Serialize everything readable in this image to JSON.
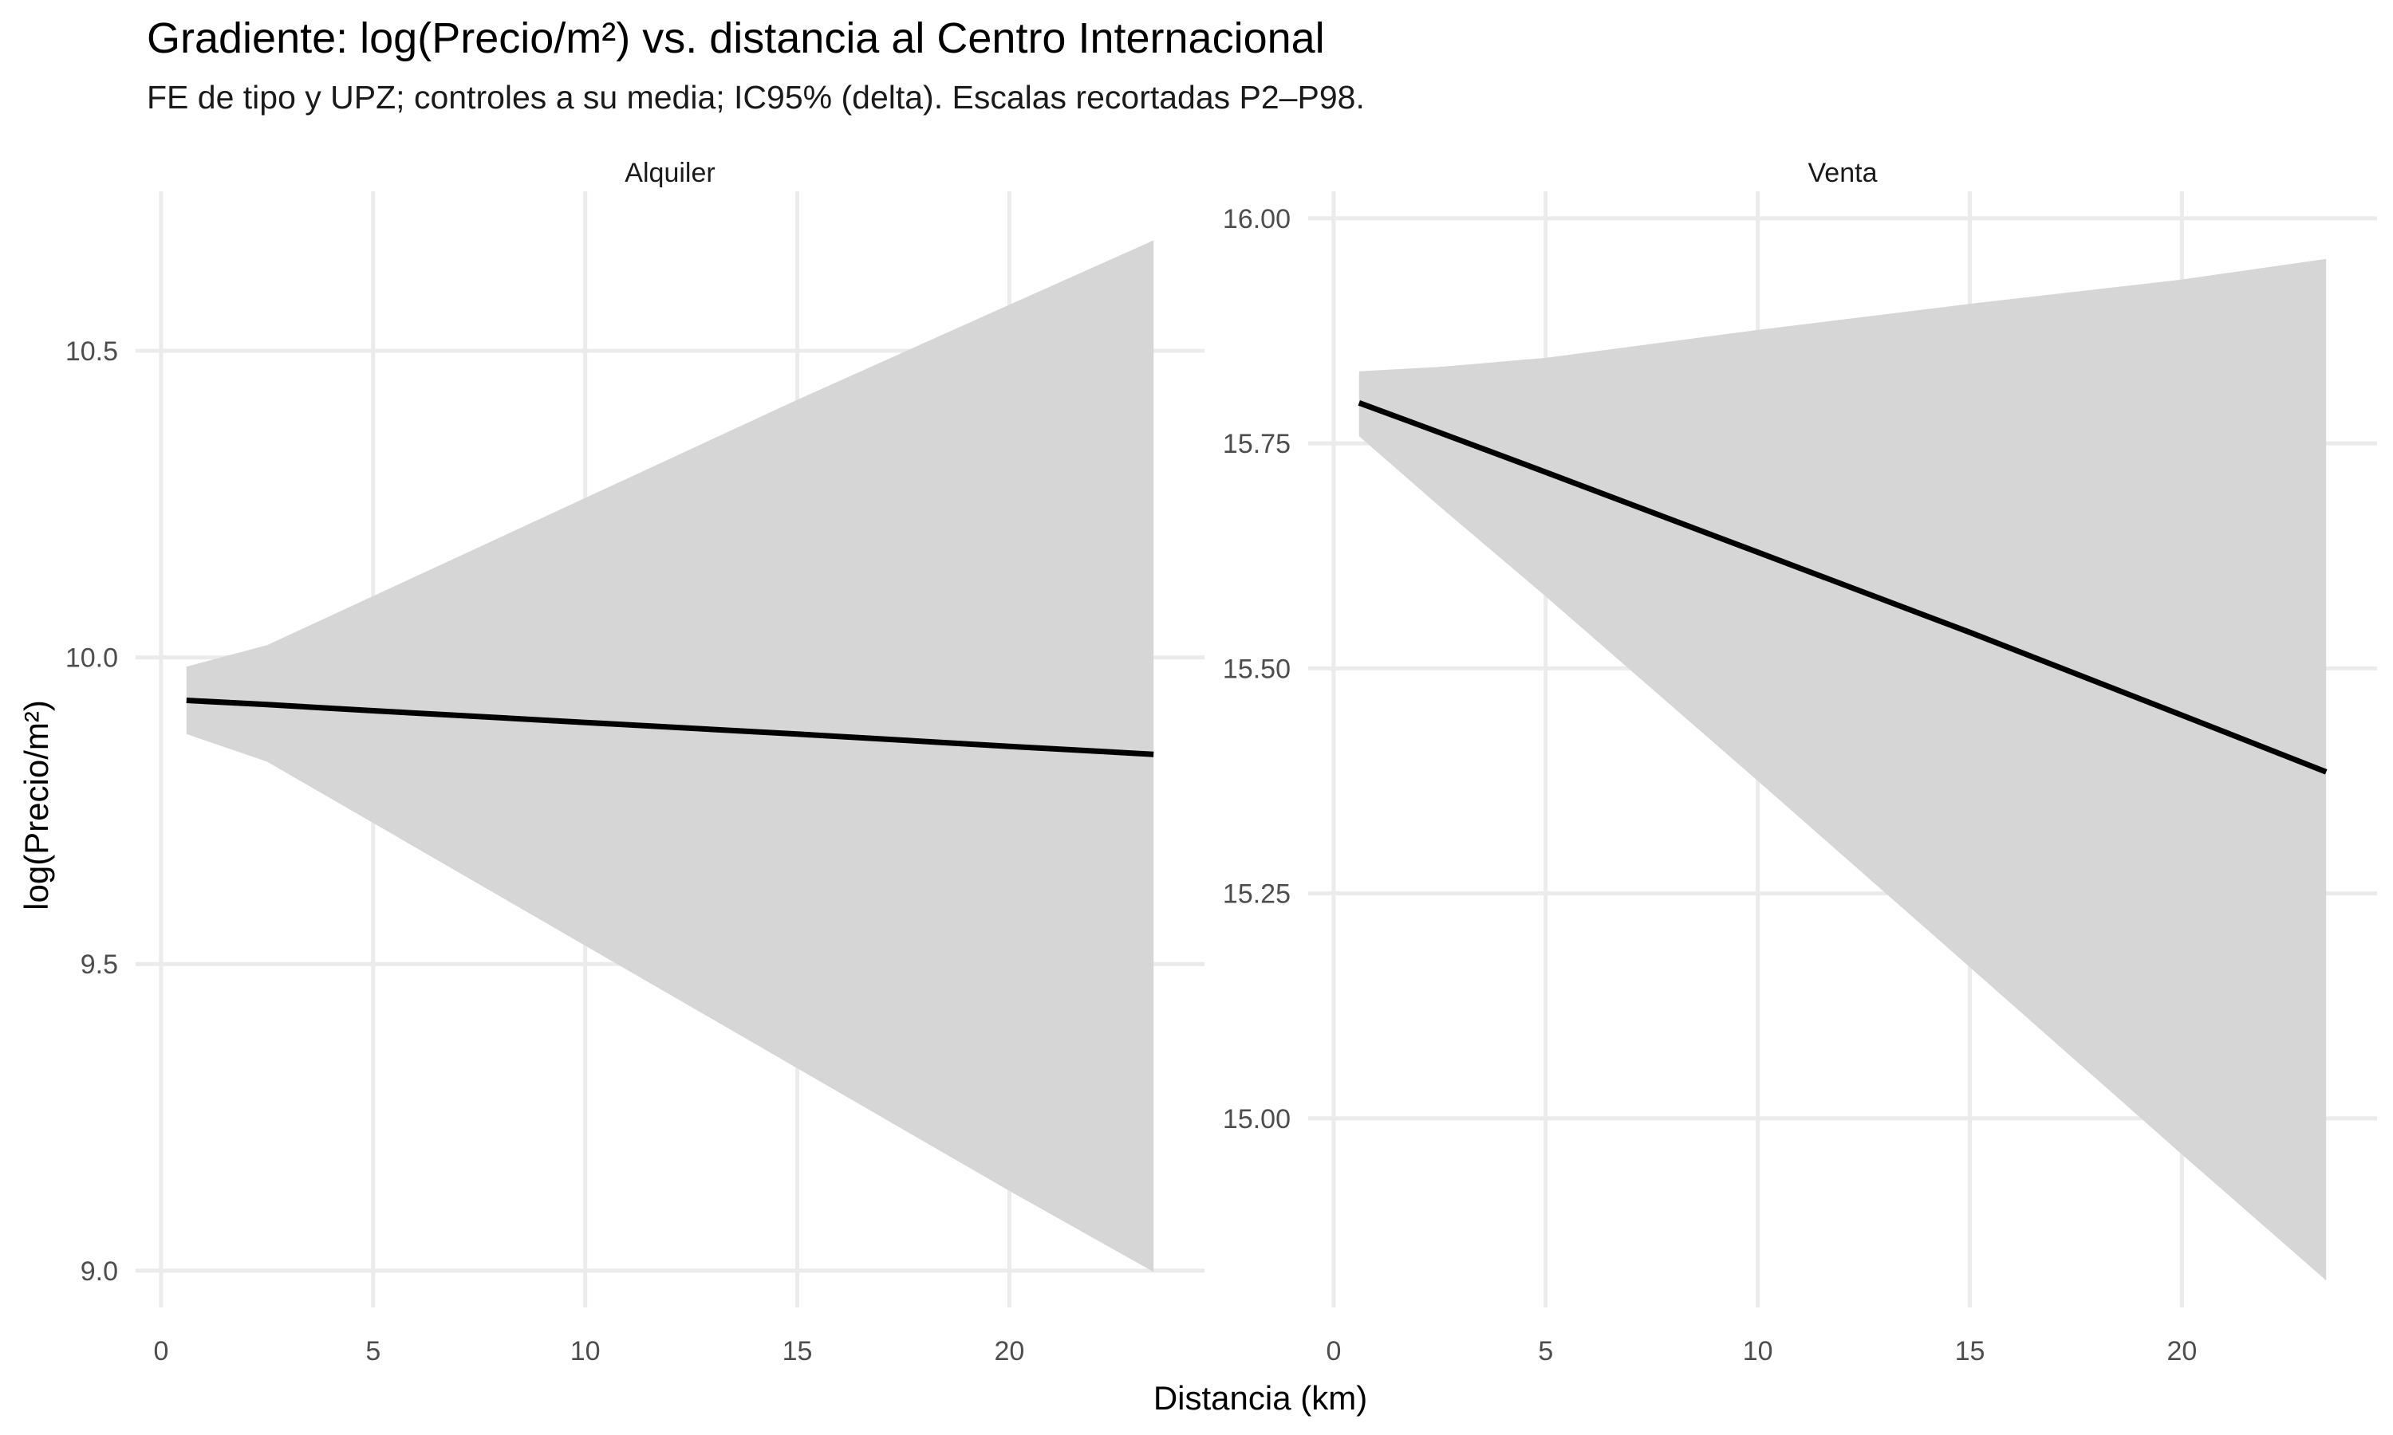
{
  "chart_data": {
    "type": "line",
    "title": "Gradiente: log(Precio/m²) vs. distancia al Centro Internacional",
    "subtitle": "FE de tipo y UPZ; controles a su media; IC95% (delta). Escalas recortadas P2–P98.",
    "xlabel": "Distancia (km)",
    "ylabel": "log(Precio/m²)",
    "grid": true,
    "legend": "none",
    "colors": {
      "line": "#000000",
      "band": "#d6d6d6",
      "grid": "#ebebeb"
    },
    "panels": [
      {
        "name": "Alquiler",
        "xlim": [
          -0.6,
          24.6
        ],
        "ylim": [
          8.94,
          10.76
        ],
        "x_ticks": [
          0,
          5,
          10,
          15,
          20
        ],
        "x_tick_labels": [
          "0",
          "5",
          "10",
          "15",
          "20"
        ],
        "y_ticks": [
          9.0,
          9.5,
          10.0,
          10.5
        ],
        "y_tick_labels": [
          "9.0",
          "9.5",
          "10.0",
          "10.5"
        ],
        "x": [
          0.6,
          2.5,
          5,
          10,
          15,
          20,
          23.4
        ],
        "fit": [
          9.93,
          9.923,
          9.913,
          9.894,
          9.875,
          9.855,
          9.842
        ],
        "lower": [
          9.875,
          9.83,
          9.73,
          9.53,
          9.33,
          9.13,
          8.998
        ],
        "upper": [
          9.985,
          10.02,
          10.1,
          10.26,
          10.42,
          10.575,
          10.68
        ]
      },
      {
        "name": "Venta",
        "xlim": [
          -0.6,
          24.6
        ],
        "ylim": [
          14.79,
          16.03
        ],
        "x_ticks": [
          0,
          5,
          10,
          15,
          20
        ],
        "x_tick_labels": [
          "0",
          "5",
          "10",
          "15",
          "20"
        ],
        "y_ticks": [
          15.0,
          15.25,
          15.5,
          15.75,
          16.0
        ],
        "y_tick_labels": [
          "15.00",
          "15.25",
          "15.50",
          "15.75",
          "16.00"
        ],
        "x": [
          0.6,
          2.5,
          5,
          10,
          15,
          20,
          23.4
        ],
        "fit": [
          15.795,
          15.762,
          15.718,
          15.629,
          15.54,
          15.448,
          15.385
        ],
        "lower": [
          15.758,
          15.68,
          15.58,
          15.375,
          15.168,
          14.96,
          14.82
        ],
        "upper": [
          15.83,
          15.835,
          15.845,
          15.876,
          15.905,
          15.932,
          15.955
        ]
      }
    ]
  }
}
